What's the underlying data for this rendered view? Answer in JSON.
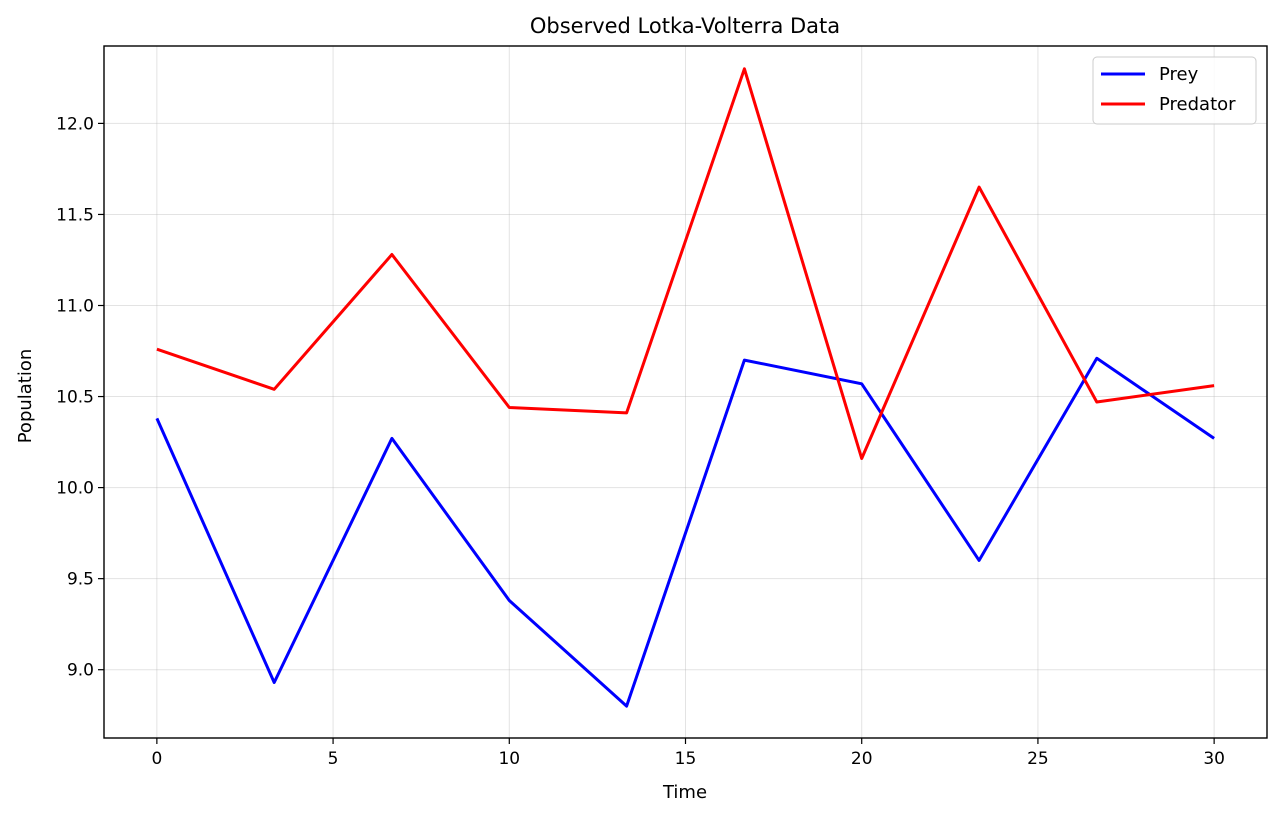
{
  "chart_data": {
    "type": "line",
    "title": "Observed Lotka-Volterra Data",
    "xlabel": "Time",
    "ylabel": "Population",
    "xlim": [
      -1.5,
      31.5
    ],
    "ylim": [
      8.625,
      12.425
    ],
    "xticks": [
      0,
      5,
      10,
      15,
      20,
      25,
      30
    ],
    "yticks": [
      9.0,
      9.5,
      10.0,
      10.5,
      11.0,
      11.5,
      12.0
    ],
    "grid": true,
    "legend_position": "top-right",
    "x": [
      0,
      3.33,
      6.67,
      10,
      13.33,
      16.67,
      20,
      23.33,
      26.67,
      30
    ],
    "series": [
      {
        "name": "Prey",
        "color": "#0000ff",
        "values": [
          10.38,
          8.93,
          10.27,
          9.38,
          8.8,
          10.7,
          10.57,
          9.6,
          10.71,
          10.27
        ]
      },
      {
        "name": "Predator",
        "color": "#ff0000",
        "values": [
          10.76,
          10.54,
          11.28,
          10.44,
          10.41,
          12.3,
          10.16,
          11.65,
          10.47,
          10.56
        ]
      }
    ]
  }
}
